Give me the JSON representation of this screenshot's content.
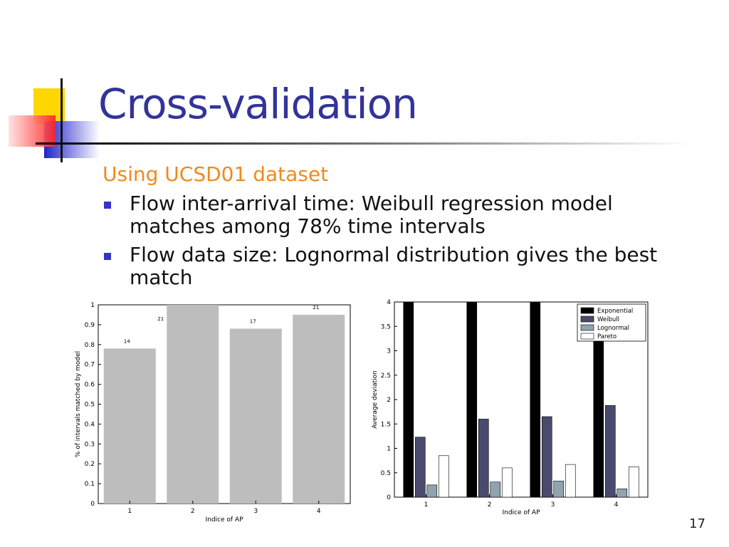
{
  "slide": {
    "title": "Cross-validation",
    "subtitle": "Using UCSD01 dataset",
    "bullets": [
      "Flow inter-arrival time: Weibull regression model matches among 78% time intervals",
      "Flow data size: Lognormal distribution gives the best match"
    ],
    "page_number": "17"
  },
  "colors": {
    "title": "#333399",
    "subtitle": "#f08a1c",
    "bullet_marker": "#3333cc"
  },
  "chart_data": [
    {
      "type": "bar",
      "categories": [
        "1",
        "2",
        "3",
        "4"
      ],
      "values": [
        0.78,
        1.0,
        0.88,
        0.95
      ],
      "bar_labels": [
        "14",
        "21",
        "17",
        "21"
      ],
      "xlabel": "Indice of AP",
      "ylabel": "% of intervals matched by model",
      "ylim": [
        0,
        1
      ],
      "yticks": [
        "0",
        "0.1",
        "0.2",
        "0.3",
        "0.4",
        "0.5",
        "0.6",
        "0.7",
        "0.8",
        "0.9",
        "1"
      ],
      "bar_color": "#bdbdbd",
      "grid": false
    },
    {
      "type": "bar",
      "categories": [
        "1",
        "2",
        "3",
        "4"
      ],
      "series": [
        {
          "name": "Exponential",
          "values": [
            4.0,
            4.0,
            4.0,
            3.3
          ],
          "color": "#000000"
        },
        {
          "name": "Weibull",
          "values": [
            1.23,
            1.6,
            1.65,
            1.88
          ],
          "color": "#4a4a6e"
        },
        {
          "name": "Lognormal",
          "values": [
            0.25,
            0.31,
            0.33,
            0.17
          ],
          "color": "#8fa4ae"
        },
        {
          "name": "Pareto",
          "values": [
            0.85,
            0.6,
            0.67,
            0.62
          ],
          "color": "#ffffff"
        }
      ],
      "xlabel": "Indice of AP",
      "ylabel": "Average deviation",
      "ylim": [
        0,
        4
      ],
      "yticks": [
        "0",
        "0.5",
        "1",
        "1.5",
        "2",
        "2.5",
        "3",
        "3.5",
        "4"
      ],
      "legend": "top-right",
      "grid": false
    }
  ]
}
